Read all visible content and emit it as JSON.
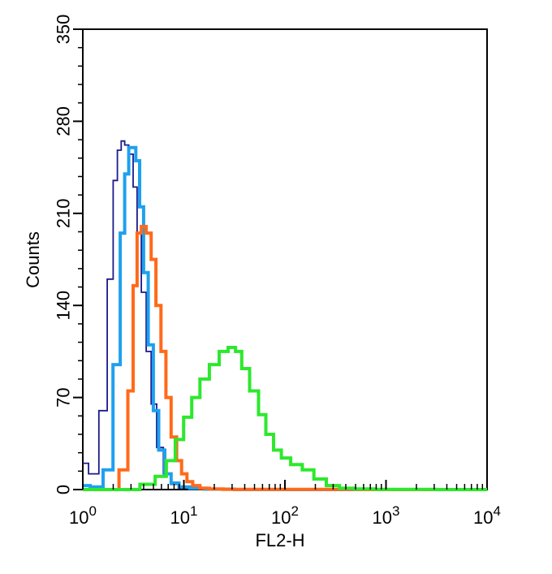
{
  "chart_data": {
    "type": "line",
    "xlabel": "FL2-H",
    "ylabel": "Counts",
    "x_scale": "log",
    "xlim": [
      1,
      10000
    ],
    "ylim": [
      0,
      350
    ],
    "x_ticks": [
      {
        "base": "10",
        "exp": "0"
      },
      {
        "base": "10",
        "exp": "1"
      },
      {
        "base": "10",
        "exp": "2"
      },
      {
        "base": "10",
        "exp": "3"
      },
      {
        "base": "10",
        "exp": "4"
      }
    ],
    "y_ticks": [
      "0",
      "70",
      "140",
      "210",
      "280",
      "350"
    ],
    "grid": false,
    "legend": "none",
    "series": [
      {
        "color": "#1a1a8c",
        "x": [
          1.0,
          1.3,
          1.6,
          1.9,
          2.1,
          2.3,
          2.5,
          2.7,
          3.0,
          3.3,
          3.6,
          4.0,
          4.5,
          5.0,
          5.8,
          6.8,
          8.0,
          10,
          13,
          20,
          50,
          10000
        ],
        "y": [
          20,
          12,
          60,
          160,
          235,
          258,
          265,
          262,
          255,
          230,
          195,
          150,
          105,
          65,
          32,
          12,
          4,
          1,
          0.5,
          0.2,
          0,
          0
        ]
      },
      {
        "color": "#1fa0ee",
        "x": [
          1.0,
          1.4,
          1.8,
          2.2,
          2.5,
          2.7,
          3.0,
          3.2,
          3.5,
          3.8,
          4.2,
          4.7,
          5.3,
          6.0,
          7.0,
          8.0,
          10,
          13,
          20,
          50,
          10000
        ],
        "y": [
          3,
          2,
          15,
          95,
          195,
          240,
          260,
          260,
          250,
          215,
          165,
          110,
          60,
          30,
          12,
          5,
          2,
          1,
          0.3,
          0,
          0
        ]
      },
      {
        "color": "#ff6a1a",
        "x": [
          1.0,
          2.0,
          2.6,
          3.0,
          3.3,
          3.6,
          4.0,
          4.5,
          5.0,
          5.6,
          6.3,
          7.0,
          8.0,
          9.0,
          10,
          11.5,
          13,
          16,
          20,
          30,
          10000
        ],
        "y": [
          0,
          0,
          15,
          75,
          155,
          195,
          200,
          195,
          175,
          140,
          105,
          70,
          40,
          22,
          12,
          6,
          3,
          1,
          0.5,
          0.2,
          0
        ]
      },
      {
        "color": "#2de82d",
        "x": [
          1.0,
          3.0,
          4.5,
          6.0,
          7.5,
          9.0,
          11,
          13,
          16,
          20,
          25,
          30,
          35,
          40,
          50,
          60,
          70,
          85,
          100,
          130,
          170,
          220,
          300,
          400,
          600,
          1000,
          10000
        ],
        "y": [
          0,
          0,
          4,
          10,
          22,
          38,
          55,
          70,
          84,
          95,
          105,
          108,
          105,
          92,
          75,
          57,
          42,
          30,
          24,
          19,
          15,
          8,
          3,
          1,
          0.5,
          0.2,
          0
        ]
      }
    ]
  }
}
